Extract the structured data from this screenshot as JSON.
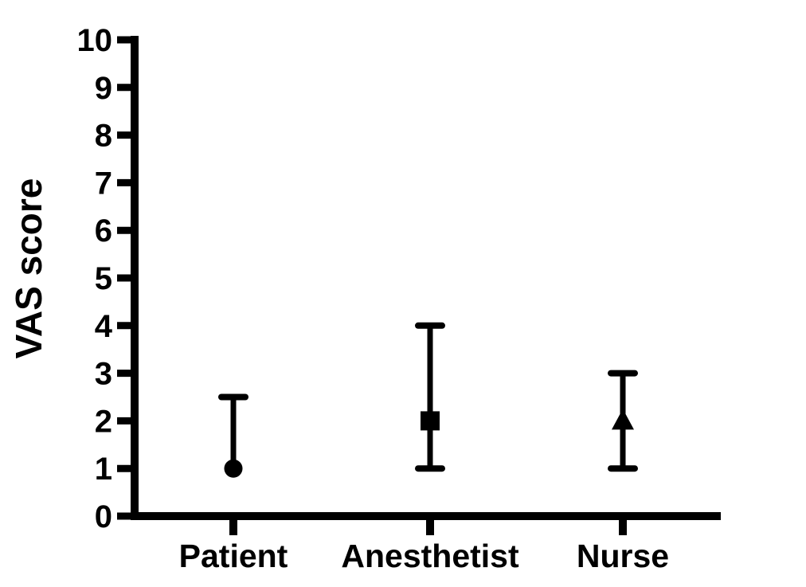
{
  "figure": {
    "background_color": "#ffffff",
    "foreground_color": "#000000"
  },
  "chart_data": {
    "type": "scatter",
    "subtype": "median-with-range-error-bars",
    "title": "",
    "xlabel": "",
    "ylabel": "VAS score",
    "ylim": [
      0,
      10
    ],
    "yticks": [
      0,
      1,
      2,
      3,
      4,
      5,
      6,
      7,
      8,
      9,
      10
    ],
    "grid": false,
    "legend": "none",
    "categories": [
      "Patient",
      "Anesthetist",
      "Nurse"
    ],
    "series": [
      {
        "name": "Patient",
        "marker": "circle",
        "median": 1,
        "lower": 1,
        "upper": 2.5
      },
      {
        "name": "Anesthetist",
        "marker": "square",
        "median": 2,
        "lower": 1,
        "upper": 4
      },
      {
        "name": "Nurse",
        "marker": "triangle",
        "median": 2,
        "lower": 1,
        "upper": 3
      }
    ],
    "colors": {
      "axis": "#000000",
      "marker": "#000000",
      "error_bar": "#000000",
      "background": "#ffffff"
    }
  }
}
